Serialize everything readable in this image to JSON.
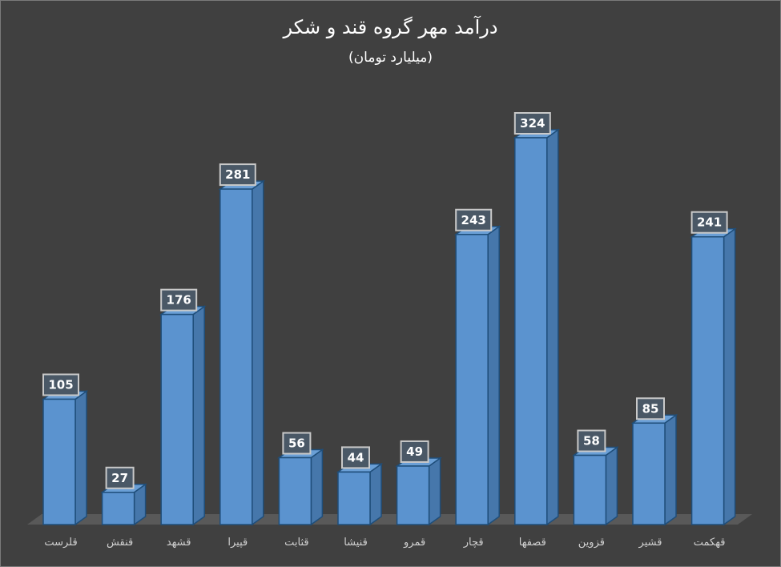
{
  "chart_data": {
    "type": "bar",
    "style": "3d-column",
    "title": "درآمد مهر گروه قند و شکر",
    "subtitle": "(میلیارد تومان)",
    "xlabel": "",
    "ylabel": "",
    "categories": [
      "قلرست",
      "قنقش",
      "قشهد",
      "قپیرا",
      "قثابت",
      "قنیشا",
      "قمرو",
      "قچار",
      "قصفها",
      "قزوین",
      "قشیر",
      "قهکمت"
    ],
    "values": [
      105,
      27,
      176,
      281,
      56,
      44,
      49,
      243,
      324,
      58,
      85,
      241
    ],
    "ylim": [
      0,
      324
    ],
    "grid": false,
    "legend": "none",
    "data_labels": true,
    "colors": {
      "background": "#404040",
      "bar_front": "#5b93cf",
      "bar_side": "#4677ab",
      "bar_top": "#6a9fd6",
      "bar_edge": "#1f4e7a",
      "label_box": "#4a5866",
      "label_border": "#c9c9c9",
      "floor": "#595959",
      "text": "#ffffff",
      "axis_text": "#d0d0d0"
    }
  }
}
